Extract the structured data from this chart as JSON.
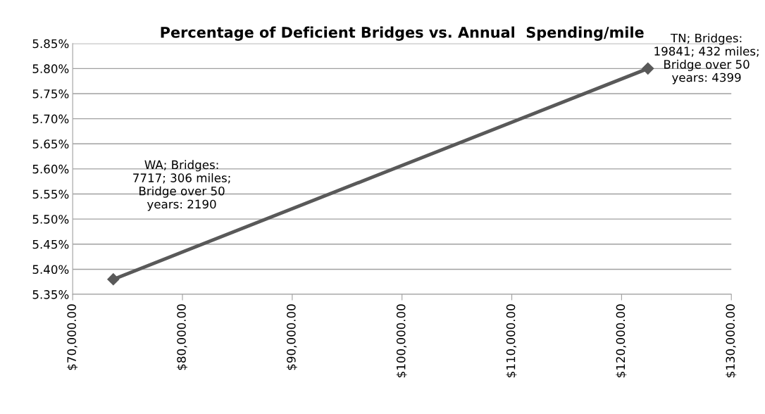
{
  "chart_data": {
    "type": "line",
    "title": "Percentage of Deficient Bridges vs. Annual  Spending/mile",
    "x": [
      73700,
      122400
    ],
    "series": [
      {
        "color": "#595959",
        "values": [
          5.38,
          5.8
        ]
      }
    ],
    "xlim": [
      70000,
      130000
    ],
    "xticks": [
      {
        "value": 70000,
        "label": "$70,000.00"
      },
      {
        "value": 80000,
        "label": "$80,000.00"
      },
      {
        "value": 90000,
        "label": "$90,000.00"
      },
      {
        "value": 100000,
        "label": "$100,000.00"
      },
      {
        "value": 110000,
        "label": "$110,000.00"
      },
      {
        "value": 120000,
        "label": "$120,000.00"
      },
      {
        "value": 130000,
        "label": "$130,000.00"
      }
    ],
    "ylim": [
      5.35,
      5.85
    ],
    "yticks": [
      {
        "value": 5.35,
        "label": "5.35%"
      },
      {
        "value": 5.4,
        "label": "5.40%"
      },
      {
        "value": 5.45,
        "label": "5.45%"
      },
      {
        "value": 5.5,
        "label": "5.50%"
      },
      {
        "value": 5.55,
        "label": "5.55%"
      },
      {
        "value": 5.6,
        "label": "5.60%"
      },
      {
        "value": 5.65,
        "label": "5.65%"
      },
      {
        "value": 5.7,
        "label": "5.70%"
      },
      {
        "value": 5.75,
        "label": "5.75%"
      },
      {
        "value": 5.8,
        "label": "5.80%"
      },
      {
        "value": 5.85,
        "label": "5.85%"
      }
    ],
    "grid": "y",
    "marker": "diamond",
    "line_style": "solid",
    "annotations": [
      "WA; Bridges:\n7717; 306 miles;\nBridge over 50\nyears: 2190",
      "TN; Bridges:\n19841; 432 miles;\nBridge over 50\nyears: 4399"
    ]
  }
}
